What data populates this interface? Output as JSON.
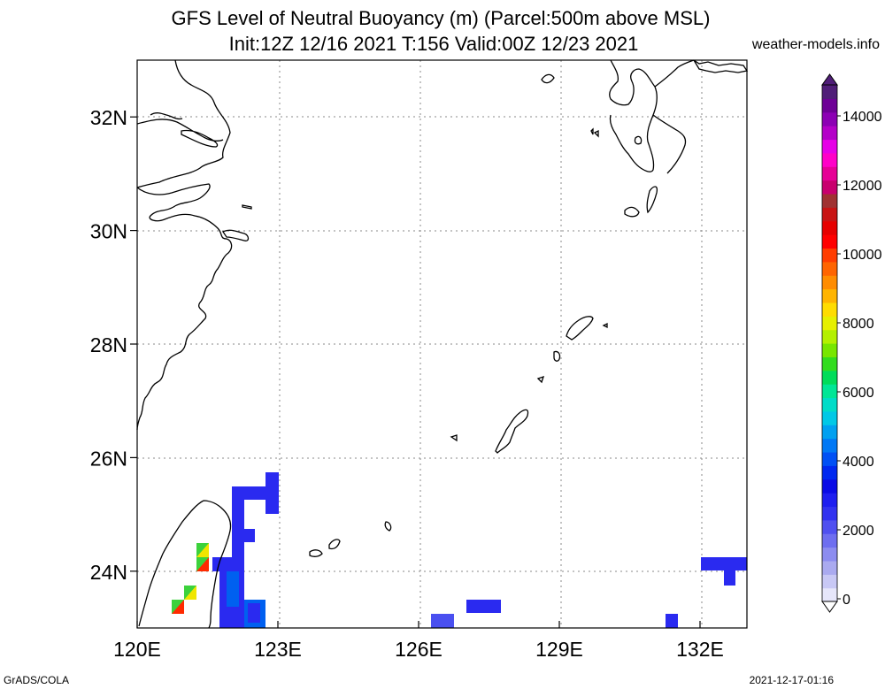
{
  "title_line1": "GFS Level of Neutral Buoyancy (m) (Parcel:500m above MSL)",
  "title_line2": "Init:12Z 12/16 2021 T:156 Valid:00Z 12/23 2021",
  "site": "weather-models.info",
  "footer_left": "GrADS/COLA",
  "footer_right": "2021-12-17-01:16",
  "map": {
    "lon_range": [
      120,
      133
    ],
    "lat_range": [
      23,
      33
    ],
    "lon_ticks": [
      {
        "value": 120,
        "label": "120E"
      },
      {
        "value": 123,
        "label": "123E"
      },
      {
        "value": 126,
        "label": "126E"
      },
      {
        "value": 129,
        "label": "129E"
      },
      {
        "value": 132,
        "label": "132E"
      }
    ],
    "lat_ticks": [
      {
        "value": 24,
        "label": "24N"
      },
      {
        "value": 26,
        "label": "26N"
      },
      {
        "value": 28,
        "label": "28N"
      },
      {
        "value": 30,
        "label": "30N"
      },
      {
        "value": 32,
        "label": "32N"
      }
    ],
    "grid": true
  },
  "colorbar": {
    "labels": [
      "0",
      "2000",
      "4000",
      "6000",
      "8000",
      "10000",
      "12000",
      "14000"
    ],
    "colors": [
      "#e6e6fa",
      "#c8c8f5",
      "#aaaaf0",
      "#8c8cf0",
      "#6e6ef0",
      "#5050f0",
      "#3232f0",
      "#1e1ef0",
      "#0a0ae6",
      "#0028f0",
      "#0050f5",
      "#0078f5",
      "#00a0f0",
      "#00c8e6",
      "#00dcc8",
      "#00e696",
      "#00dc5a",
      "#32dc1e",
      "#78e600",
      "#b4f000",
      "#e6f000",
      "#ffdc00",
      "#ffb400",
      "#ff8c00",
      "#ff6400",
      "#ff3c00",
      "#ff0000",
      "#e60000",
      "#c81414",
      "#a03232",
      "#c8006e",
      "#e60096",
      "#ff00c8",
      "#e600e6",
      "#b400c8",
      "#8c00b4",
      "#6e0096",
      "#501e78"
    ]
  },
  "color_scale": {
    "c_low": "#2a2af0",
    "c_mid": "#0060f0",
    "c_hot_green": "#3cd23c",
    "c_hot_yellow": "#f0e600",
    "c_hot_red": "#ff2a00",
    "c_hot_teal": "#00c8c8",
    "c_pale": "#4a50f0"
  }
}
